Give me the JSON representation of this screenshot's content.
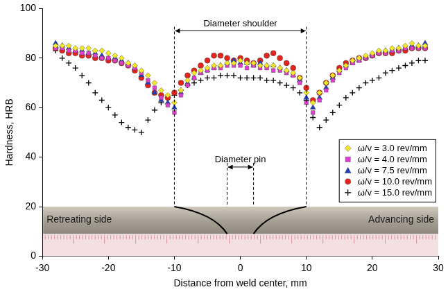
{
  "chart_data": {
    "type": "scatter",
    "x_label": "Distance from weld center, mm",
    "y_label": "Hardness, HRB",
    "xlim": [
      -30,
      30
    ],
    "xticks": [
      -30,
      -20,
      -10,
      0,
      10,
      20,
      30
    ],
    "ylim": [
      0,
      100
    ],
    "yticks": [
      0,
      20,
      40,
      60,
      80,
      100
    ],
    "grid": false,
    "legend": "lower right",
    "x": [
      -28,
      -27,
      -26,
      -25,
      -24,
      -23,
      -22,
      -21,
      -20,
      -19,
      -18,
      -17,
      -16,
      -15,
      -14,
      -13,
      -12,
      -11,
      -10,
      -9,
      -8,
      -7,
      -6,
      -5,
      -4,
      -3,
      -2,
      -1,
      0,
      1,
      2,
      3,
      4,
      5,
      6,
      7,
      8,
      9,
      10,
      11,
      12,
      13,
      14,
      15,
      16,
      17,
      18,
      19,
      20,
      21,
      22,
      23,
      24,
      25,
      26,
      27,
      28
    ],
    "series": [
      {
        "name": "ω/v = 3.0 rev/mm",
        "color": "#f2e829",
        "marker": "diamond",
        "values": [
          85,
          85,
          85,
          84,
          84,
          84,
          83,
          83,
          82,
          81,
          80,
          78,
          77,
          75,
          73,
          70,
          67,
          65,
          62,
          67,
          71,
          74,
          75,
          76,
          77,
          77,
          78,
          78,
          79,
          78,
          78,
          77,
          77,
          77,
          76,
          75,
          74,
          72,
          66,
          62,
          66,
          70,
          73,
          75,
          77,
          79,
          80,
          81,
          82,
          83,
          83,
          84,
          84,
          85,
          86,
          85,
          85
        ]
      },
      {
        "name": "ω/v = 4.0 rev/mm",
        "color": "#e03fd2",
        "marker": "square",
        "values": [
          84,
          84,
          83,
          83,
          82,
          82,
          81,
          80,
          80,
          79,
          78,
          77,
          76,
          74,
          71,
          68,
          64,
          61,
          58,
          65,
          69,
          72,
          74,
          75,
          76,
          76,
          77,
          77,
          77,
          76,
          77,
          76,
          76,
          75,
          75,
          74,
          73,
          70,
          62,
          58,
          63,
          67,
          71,
          74,
          76,
          78,
          79,
          80,
          81,
          82,
          82,
          83,
          83,
          84,
          84,
          84,
          84
        ]
      },
      {
        "name": "ω/v = 7.5 rev/mm",
        "color": "#1f3dbf",
        "marker": "triangle",
        "values": [
          86,
          85,
          84,
          83,
          83,
          82,
          82,
          81,
          80,
          80,
          79,
          78,
          76,
          73,
          70,
          66,
          63,
          62,
          60,
          66,
          70,
          72,
          74,
          75,
          76,
          77,
          78,
          79,
          78,
          78,
          77,
          78,
          77,
          77,
          76,
          75,
          73,
          71,
          64,
          60,
          64,
          68,
          72,
          75,
          77,
          78,
          79,
          80,
          81,
          82,
          83,
          83,
          84,
          84,
          85,
          85,
          86
        ]
      },
      {
        "name": "ω/v = 10.0 rev/mm",
        "color": "#e3241d",
        "marker": "circle",
        "values": [
          84,
          83,
          82,
          82,
          81,
          81,
          80,
          80,
          79,
          79,
          78,
          77,
          75,
          72,
          69,
          66,
          65,
          64,
          66,
          70,
          73,
          75,
          77,
          79,
          81,
          81,
          80,
          79,
          80,
          79,
          78,
          79,
          81,
          82,
          80,
          78,
          76,
          72,
          68,
          63,
          66,
          70,
          73,
          76,
          78,
          79,
          80,
          80,
          81,
          82,
          82,
          82,
          83,
          83,
          84,
          84,
          84
        ]
      },
      {
        "name": "ω/v = 15.0 rev/mm",
        "color": "#000000",
        "marker": "plus",
        "values": [
          83,
          80,
          78,
          76,
          73,
          70,
          66,
          63,
          60,
          57,
          54,
          52,
          51,
          50,
          55,
          59,
          62,
          64,
          65,
          67,
          69,
          70,
          71,
          72,
          72,
          73,
          73,
          73,
          72,
          72,
          72,
          72,
          71,
          71,
          70,
          69,
          68,
          66,
          63,
          56,
          52,
          55,
          58,
          61,
          64,
          66,
          68,
          70,
          71,
          72,
          74,
          75,
          76,
          77,
          78,
          79,
          79
        ]
      }
    ],
    "annotations": [
      {
        "text": "Diameter shoulder",
        "x": [
          -10,
          10
        ]
      },
      {
        "text": "Diameter pin",
        "x": [
          -2,
          2
        ]
      },
      {
        "text": "Retreating side"
      },
      {
        "text": "Advancing side"
      }
    ]
  }
}
